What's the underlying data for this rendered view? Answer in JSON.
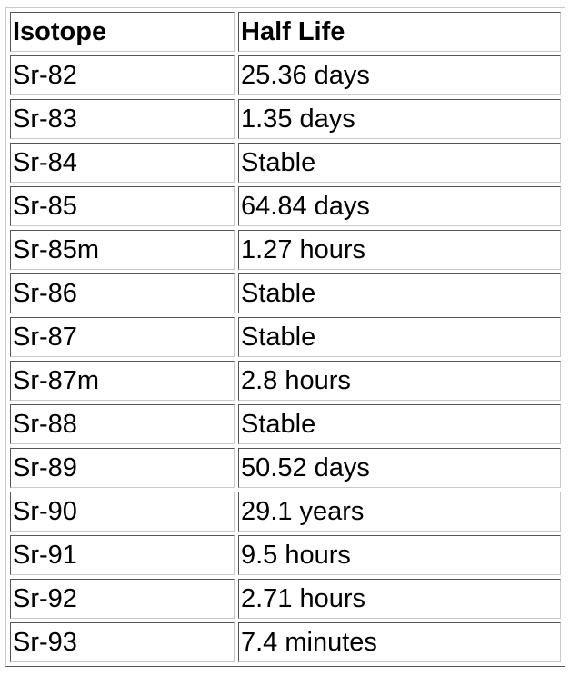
{
  "table": {
    "headers": [
      "Isotope",
      "Half Life"
    ],
    "rows": [
      [
        "Sr-82",
        "25.36 days"
      ],
      [
        "Sr-83",
        "1.35 days"
      ],
      [
        "Sr-84",
        "Stable"
      ],
      [
        "Sr-85",
        "64.84 days"
      ],
      [
        "Sr-85m",
        "1.27 hours"
      ],
      [
        "Sr-86",
        "Stable"
      ],
      [
        "Sr-87",
        "Stable"
      ],
      [
        "Sr-87m",
        "2.8 hours"
      ],
      [
        "Sr-88",
        "Stable"
      ],
      [
        "Sr-89",
        "50.52 days"
      ],
      [
        "Sr-90",
        "29.1 years"
      ],
      [
        "Sr-91",
        "9.5 hours"
      ],
      [
        "Sr-92",
        "2.71 hours"
      ],
      [
        "Sr-93",
        "7.4 minutes"
      ]
    ]
  }
}
